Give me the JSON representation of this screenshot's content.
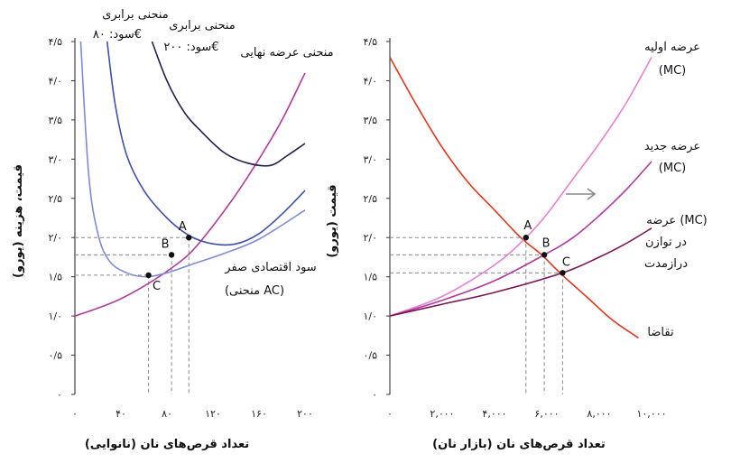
{
  "chart_data": [
    {
      "type": "line",
      "xlabel": "تعداد قرص‌های نان (نانوایی)",
      "ylabel": "قیمت، هزینه (یورو)",
      "xlim": [
        0,
        200
      ],
      "ylim": [
        0,
        4.5
      ],
      "x_ticks": [
        {
          "v": 0,
          "t": "۰"
        },
        {
          "v": 40,
          "t": "۴۰"
        },
        {
          "v": 80,
          "t": "۸۰"
        },
        {
          "v": 120,
          "t": "۱۲۰"
        },
        {
          "v": 160,
          "t": "۱۶۰"
        },
        {
          "v": 200,
          "t": "۲۰۰"
        }
      ],
      "y_ticks": [
        {
          "v": 0,
          "t": "۰"
        },
        {
          "v": 0.5,
          "t": "۰/۵"
        },
        {
          "v": 1.0,
          "t": "۱/۰"
        },
        {
          "v": 1.5,
          "t": "۱/۵"
        },
        {
          "v": 2.0,
          "t": "۲/۰"
        },
        {
          "v": 2.5,
          "t": "۲/۵"
        },
        {
          "v": 3.0,
          "t": "۳/۰"
        },
        {
          "v": 3.5,
          "t": "۳/۵"
        },
        {
          "v": 4.0,
          "t": "۴/۰"
        },
        {
          "v": 4.5,
          "t": "۴/۵"
        }
      ],
      "series": [
        {
          "name": "منحنی عرضه نهایی",
          "color": "#b03a9e",
          "x": [
            0,
            20,
            40,
            60,
            80,
            100,
            120,
            140,
            160,
            180,
            200
          ],
          "y": [
            1.0,
            1.1,
            1.22,
            1.38,
            1.57,
            1.8,
            2.15,
            2.55,
            3.0,
            3.5,
            4.1
          ]
        },
        {
          "name": "سود اقتصادی صفر (منحنی AC)",
          "color": "#7f8ad6",
          "x": [
            5,
            12,
            20,
            30,
            45,
            62,
            80,
            100,
            130,
            160,
            200
          ],
          "y": [
            4.5,
            2.8,
            2.05,
            1.7,
            1.55,
            1.5,
            1.55,
            1.65,
            1.8,
            1.98,
            2.35
          ]
        },
        {
          "name": "منحنی برابری سود: ۸۰€",
          "color": "#3f50a8",
          "x": [
            28,
            35,
            45,
            60,
            80,
            100,
            120,
            140,
            160,
            180,
            200
          ],
          "y": [
            4.5,
            3.7,
            3.05,
            2.6,
            2.25,
            2.02,
            1.92,
            1.92,
            2.05,
            2.3,
            2.6
          ]
        },
        {
          "name": "منحنی برابری سود: ۲۰۰€",
          "color": "#1f1e4e",
          "x": [
            67,
            80,
            95,
            110,
            130,
            150,
            170,
            185,
            200
          ],
          "y": [
            4.5,
            4.0,
            3.6,
            3.35,
            3.08,
            2.95,
            2.92,
            3.05,
            3.2
          ]
        }
      ],
      "points": [
        {
          "label": "A",
          "x": 99,
          "y": 2.0
        },
        {
          "label": "B",
          "x": 84,
          "y": 1.78
        },
        {
          "label": "C",
          "x": 64,
          "y": 1.52
        }
      ],
      "annotations": {
        "mc": "منحنی عرضه نهایی",
        "iso80_l1": "منحنی برابری",
        "iso80_l2": "سود: ۸۰€",
        "iso200_l1": "منحنی برابری",
        "iso200_l2": "سود: ۲۰۰€",
        "ac_l1": "سود اقتصادی صفر",
        "ac_l2": "(منحنی AC)"
      }
    },
    {
      "type": "line",
      "xlabel": "تعداد قرص‌های نان (بازار نان)",
      "ylabel": "قیمت (یورو)",
      "xlim": [
        0,
        10000
      ],
      "ylim": [
        0,
        4.5
      ],
      "x_ticks": [
        {
          "v": 0,
          "t": "۰"
        },
        {
          "v": 2000,
          "t": "۲,۰۰۰"
        },
        {
          "v": 4000,
          "t": "۴,۰۰۰"
        },
        {
          "v": 6000,
          "t": "۶,۰۰۰"
        },
        {
          "v": 8000,
          "t": "۸,۰۰۰"
        },
        {
          "v": 10000,
          "t": "۱۰,۰۰۰"
        }
      ],
      "y_ticks": [
        {
          "v": 0,
          "t": "۰"
        },
        {
          "v": 0.5,
          "t": "۰/۵"
        },
        {
          "v": 1.0,
          "t": "۱/۰"
        },
        {
          "v": 1.5,
          "t": "۱/۵"
        },
        {
          "v": 2.0,
          "t": "۲/۰"
        },
        {
          "v": 2.5,
          "t": "۲/۵"
        },
        {
          "v": 3.0,
          "t": "۳/۰"
        },
        {
          "v": 3.5,
          "t": "۳/۵"
        },
        {
          "v": 4.0,
          "t": "۴/۰"
        },
        {
          "v": 4.5,
          "t": "۴/۵"
        }
      ],
      "series": [
        {
          "name": "تقاضا",
          "color": "#e0351b",
          "x": [
            0,
            1000,
            2000,
            3000,
            4000,
            5000,
            5800,
            6500,
            7500,
            8500,
            9500
          ],
          "y": [
            4.3,
            3.7,
            3.15,
            2.7,
            2.35,
            2.0,
            1.78,
            1.55,
            1.25,
            0.95,
            0.72
          ]
        },
        {
          "name": "عرضه اولیه (MC)",
          "color": "#e482d0",
          "x": [
            0,
            2000,
            4000,
            5200,
            6000,
            7000,
            8000,
            9000,
            10000
          ],
          "y": [
            1.0,
            1.25,
            1.65,
            2.0,
            2.3,
            2.75,
            3.2,
            3.7,
            4.3
          ]
        },
        {
          "name": "عرضه جدید (MC)",
          "color": "#b03a9e",
          "x": [
            0,
            2000,
            4000,
            5900,
            7000,
            8000,
            9000,
            10000
          ],
          "y": [
            1.0,
            1.2,
            1.45,
            1.78,
            2.0,
            2.28,
            2.6,
            2.97
          ]
        },
        {
          "name": "عرضه (MC) در توازن درازمدت",
          "color": "#7a1454",
          "x": [
            0,
            2000,
            4000,
            6600,
            8000,
            9000,
            10000
          ],
          "y": [
            1.0,
            1.15,
            1.3,
            1.55,
            1.75,
            1.92,
            2.12
          ]
        }
      ],
      "points": [
        {
          "label": "A",
          "x": 5200,
          "y": 2.0
        },
        {
          "label": "B",
          "x": 5900,
          "y": 1.78
        },
        {
          "label": "C",
          "x": 6600,
          "y": 1.55
        }
      ],
      "annotations": {
        "s1_l1": "عرضه اولیه",
        "s1_l2": "(MC)",
        "s2_l1": "عرضه جدید",
        "s2_l2": "(MC)",
        "s3_l1": "عرضه (MC)",
        "s3_l2": "در توازن",
        "s3_l3": "درازمدت",
        "demand": "تقاضا"
      }
    }
  ]
}
